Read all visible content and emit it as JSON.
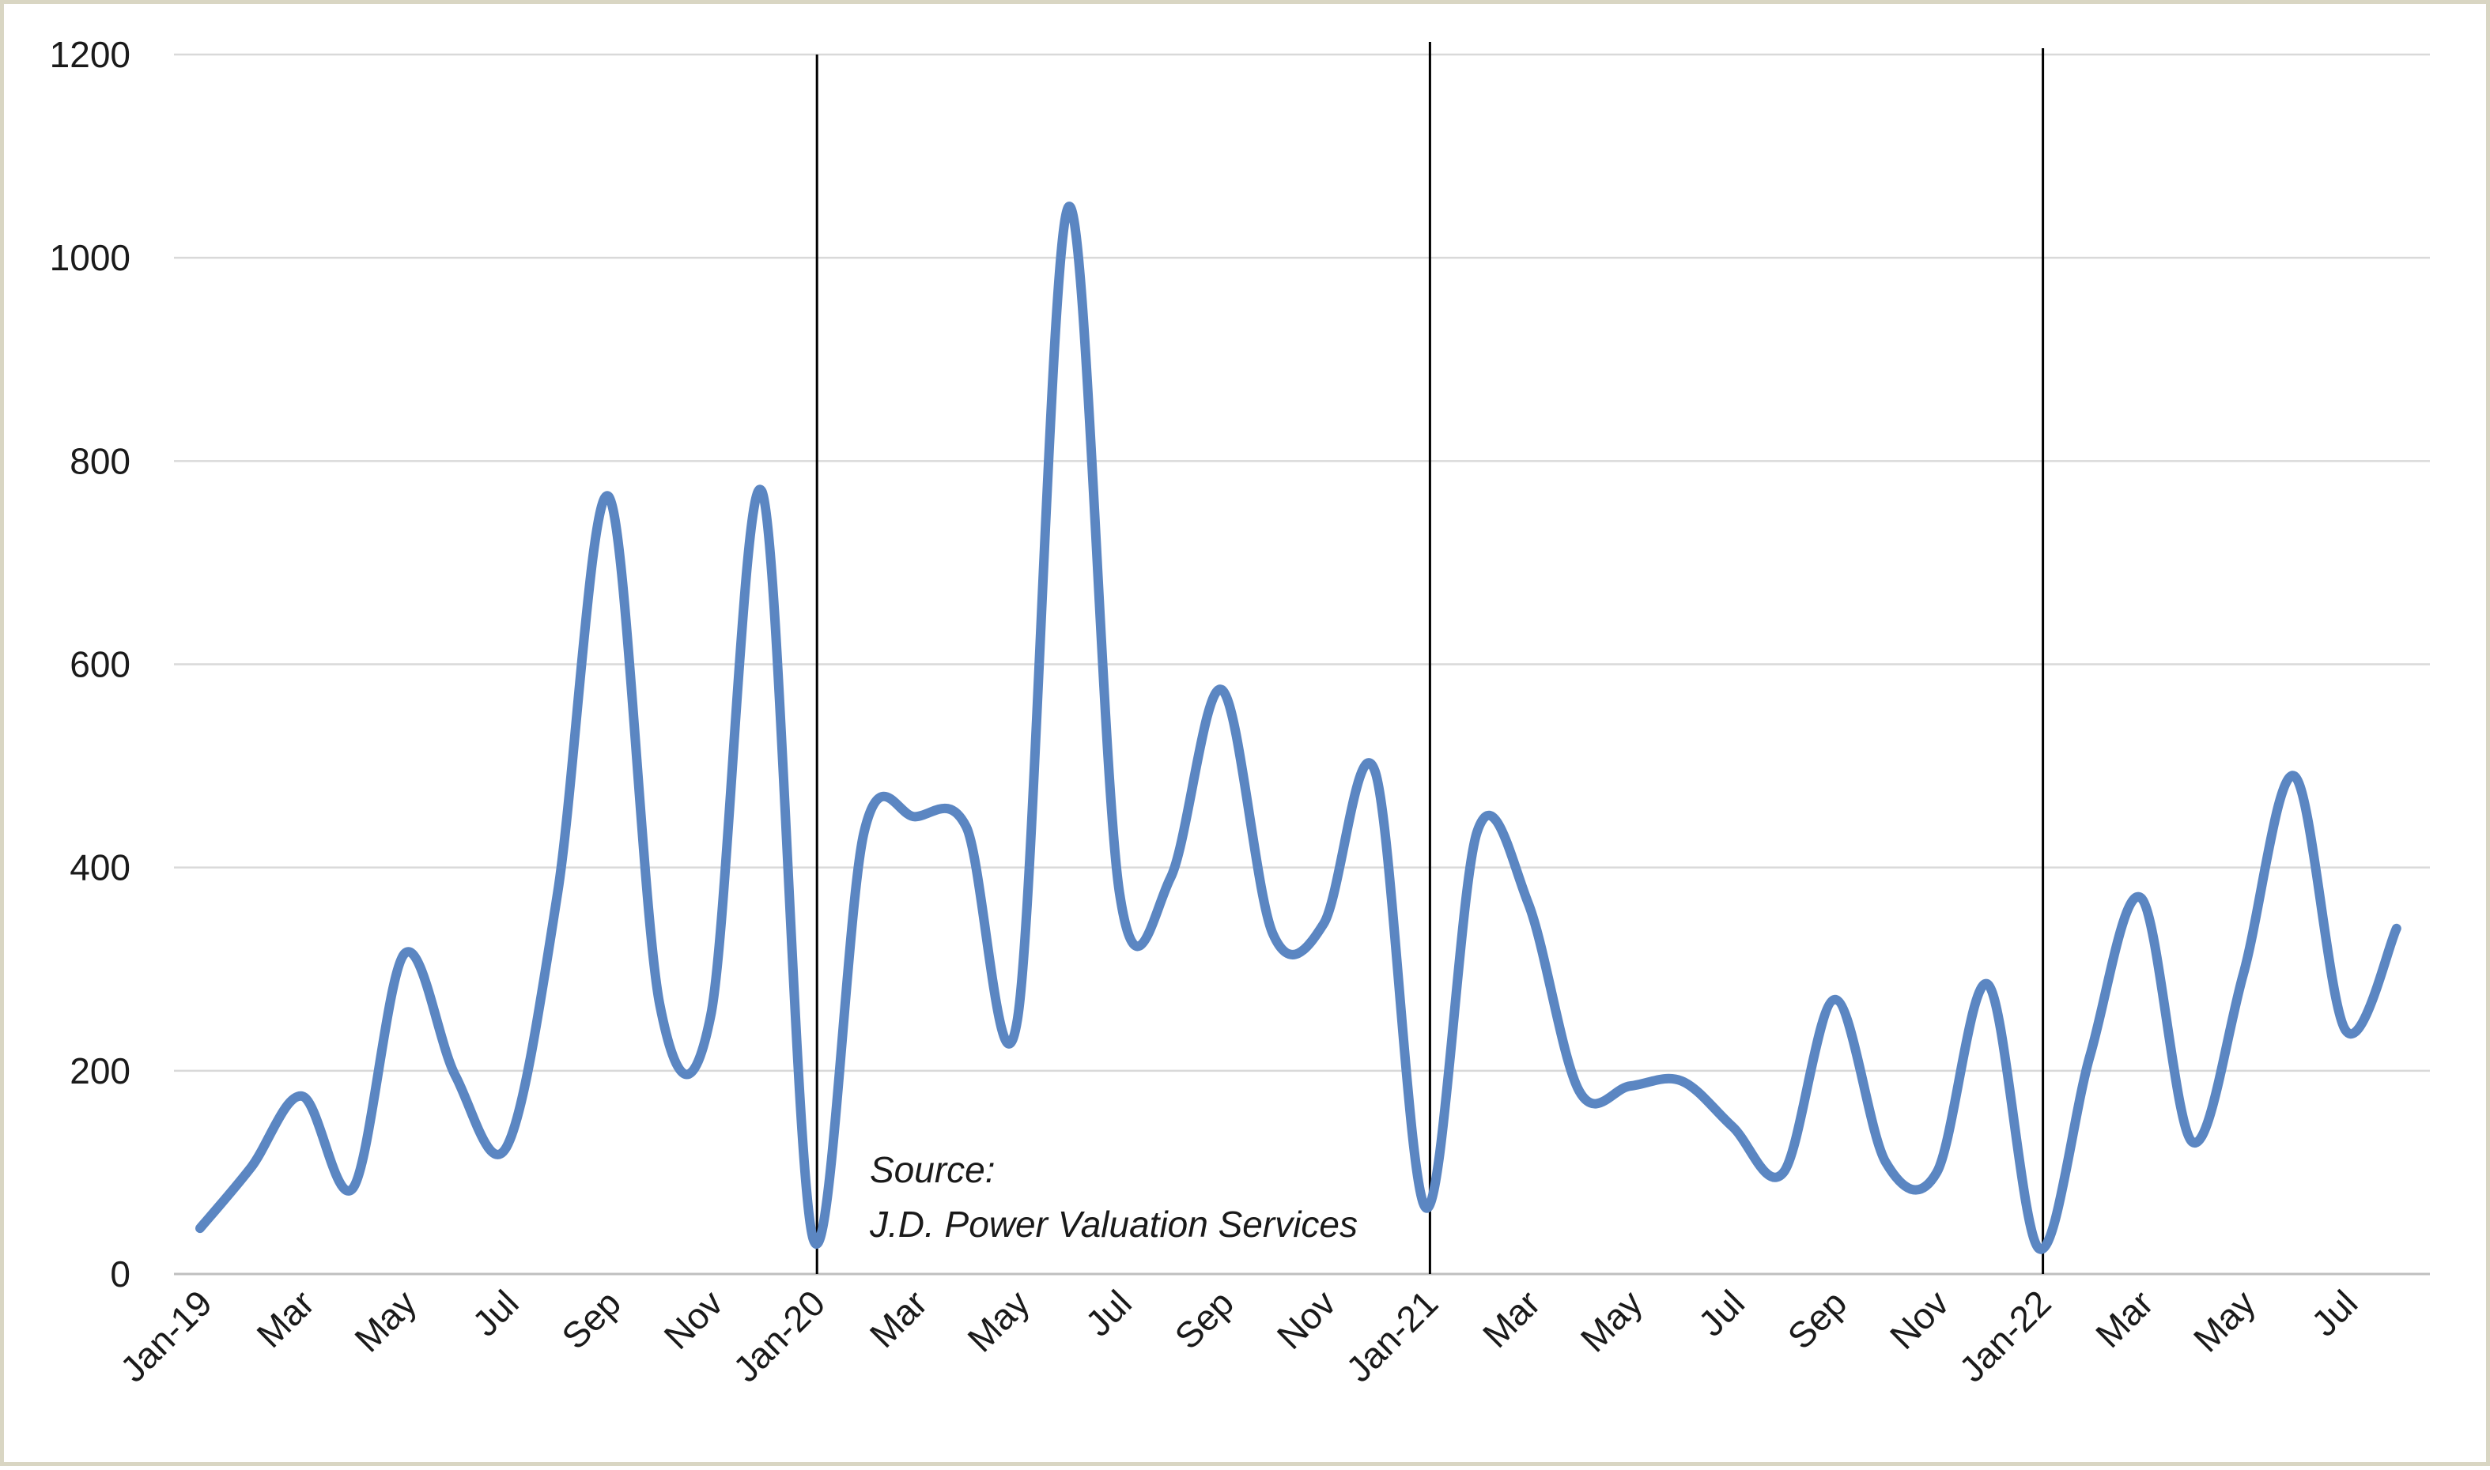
{
  "chart_data": {
    "type": "line",
    "title": "",
    "xlabel": "",
    "ylabel": "",
    "ylim": [
      0,
      1200
    ],
    "yticks": [
      0,
      200,
      400,
      600,
      800,
      1000,
      1200
    ],
    "grid": true,
    "legend": "none",
    "x_tick_labels": [
      "Jan-19",
      "Mar",
      "May",
      "Jul",
      "Sep",
      "Nov",
      "Jan-20",
      "Mar",
      "May",
      "Jul",
      "Sep",
      "Nov",
      "Jan-21",
      "Mar",
      "May",
      "Jul",
      "Sep",
      "Nov",
      "Jan-22",
      "Mar",
      "May",
      "Jul"
    ],
    "x": [
      "Jan-19",
      "Feb-19",
      "Mar-19",
      "Apr-19",
      "May-19",
      "Jun-19",
      "Jul-19",
      "Aug-19",
      "Sep-19",
      "Oct-19",
      "Nov-19",
      "Dec-19",
      "Jan-20",
      "Feb-20",
      "Mar-20",
      "Apr-20",
      "May-20",
      "Jun-20",
      "Jul-20",
      "Aug-20",
      "Sep-20",
      "Oct-20",
      "Nov-20",
      "Dec-20",
      "Jan-21",
      "Feb-21",
      "Mar-21",
      "Apr-21",
      "May-21",
      "Jun-21",
      "Jul-21",
      "Aug-21",
      "Sep-21",
      "Oct-21",
      "Nov-21",
      "Dec-21",
      "Jan-22",
      "Feb-22",
      "Mar-22",
      "Apr-22",
      "May-22",
      "Jun-22",
      "Jul-22",
      "Aug-22"
    ],
    "series": [
      {
        "color": "#5b86c2",
        "values": [
          45,
          105,
          175,
          85,
          315,
          195,
          125,
          375,
          765,
          265,
          255,
          770,
          35,
          435,
          450,
          440,
          250,
          1050,
          375,
          390,
          575,
          335,
          345,
          495,
          65,
          435,
          365,
          180,
          185,
          190,
          145,
          100,
          270,
          110,
          100,
          285,
          25,
          215,
          370,
          130,
          295,
          490,
          240,
          340
        ]
      }
    ],
    "year_dividers": [
      "Jan-20",
      "Jan-21",
      "Jan-22"
    ],
    "annotation": {
      "line1": "Source:",
      "line2": "J.D. Power Valuation Services"
    }
  }
}
